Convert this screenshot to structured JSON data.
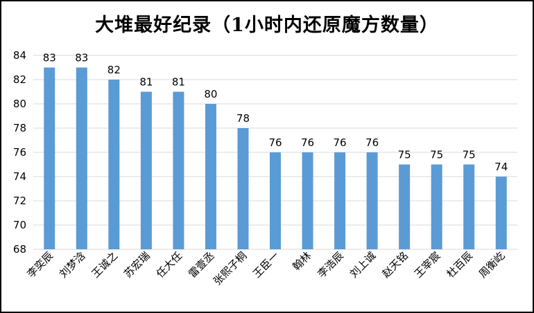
{
  "chart_data": {
    "type": "bar",
    "title": "大堆最好纪录（1小时内还原魔方数量）",
    "xlabel": "",
    "ylabel": "",
    "categories": [
      "李奕辰",
      "刘梦浛",
      "王诚之",
      "苏宏瑞",
      "任大任",
      "雷壹丞",
      "张熙子桐",
      "王臣一",
      "翰林",
      "李浩辰",
      "刘上诚",
      "赵天铭",
      "王宰宸",
      "杜百辰",
      "周衡屹"
    ],
    "values": [
      83,
      83,
      82,
      81,
      81,
      80,
      78,
      76,
      76,
      76,
      76,
      75,
      75,
      75,
      74
    ],
    "ylim": [
      68,
      84
    ],
    "yticks": [
      68,
      70,
      72,
      74,
      76,
      78,
      80,
      82,
      84
    ],
    "grid": true,
    "legend": "none",
    "colors": {
      "bar": "#5b9bd5",
      "grid": "#d9d9d9",
      "text": "#000000"
    }
  }
}
